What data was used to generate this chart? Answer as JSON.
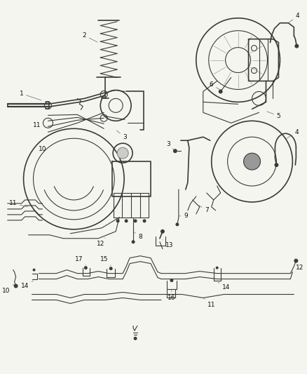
{
  "bg_color": "#f5f5f0",
  "line_color": "#3a3a3a",
  "label_color": "#111111",
  "label_fontsize": 6.5,
  "fig_width": 4.38,
  "fig_height": 5.33,
  "dpi": 100
}
